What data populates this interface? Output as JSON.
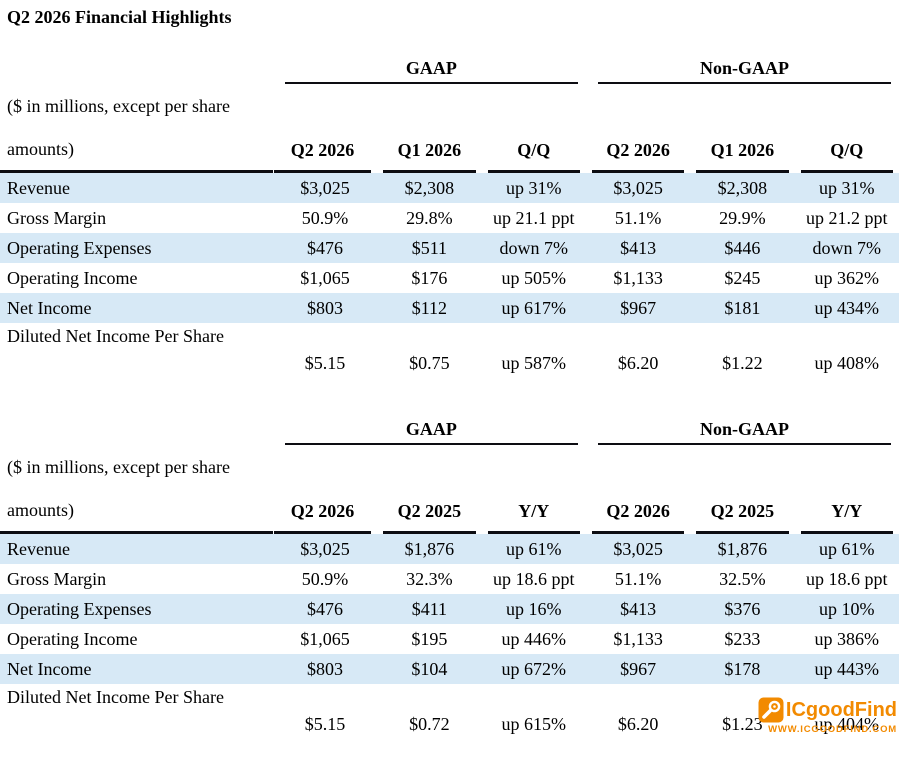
{
  "page": {
    "title": "Q2 2026 Financial Highlights"
  },
  "colors": {
    "row_stripe": "#d7e9f6",
    "border": "#0d0d12",
    "watermark_accent": "#f28a00"
  },
  "tables": [
    {
      "group_headers": [
        "GAAP",
        "Non-GAAP"
      ],
      "units_note": [
        "($ in millions, except per share",
        "amounts)"
      ],
      "columns": [
        "Q2 2026",
        "Q1 2026",
        "Q/Q",
        "Q2 2026",
        "Q1 2026",
        "Q/Q"
      ],
      "rows": [
        {
          "label": "Revenue",
          "values": [
            "$3,025",
            "$2,308",
            "up 31%",
            "$3,025",
            "$2,308",
            "up 31%"
          ]
        },
        {
          "label": "Gross Margin",
          "values": [
            "50.9%",
            "29.8%",
            "up 21.1 ppt",
            "51.1%",
            "29.9%",
            "up 21.2 ppt"
          ]
        },
        {
          "label": "Operating Expenses",
          "values": [
            "$476",
            "$511",
            "down 7%",
            "$413",
            "$446",
            "down 7%"
          ]
        },
        {
          "label": "Operating Income",
          "values": [
            "$1,065",
            "$176",
            "up 505%",
            "$1,133",
            "$245",
            "up 362%"
          ]
        },
        {
          "label": "Net Income",
          "values": [
            "$803",
            "$112",
            "up 617%",
            "$967",
            "$181",
            "up 434%"
          ]
        },
        {
          "label": "Diluted Net Income Per Share",
          "values": [
            "$5.15",
            "$0.75",
            "up 587%",
            "$6.20",
            "$1.22",
            "up 408%"
          ],
          "tall": true
        }
      ]
    },
    {
      "group_headers": [
        "GAAP",
        "Non-GAAP"
      ],
      "units_note": [
        "($ in millions, except per share",
        "amounts)"
      ],
      "columns": [
        "Q2 2026",
        "Q2 2025",
        "Y/Y",
        "Q2 2026",
        "Q2 2025",
        "Y/Y"
      ],
      "rows": [
        {
          "label": "Revenue",
          "values": [
            "$3,025",
            "$1,876",
            "up 61%",
            "$3,025",
            "$1,876",
            "up 61%"
          ]
        },
        {
          "label": "Gross Margin",
          "values": [
            "50.9%",
            "32.3%",
            "up 18.6 ppt",
            "51.1%",
            "32.5%",
            "up 18.6 ppt"
          ]
        },
        {
          "label": "Operating Expenses",
          "values": [
            "$476",
            "$411",
            "up 16%",
            "$413",
            "$376",
            "up 10%"
          ]
        },
        {
          "label": "Operating Income",
          "values": [
            "$1,065",
            "$195",
            "up 446%",
            "$1,133",
            "$233",
            "up 386%"
          ]
        },
        {
          "label": "Net Income",
          "values": [
            "$803",
            "$104",
            "up 672%",
            "$967",
            "$178",
            "up 443%"
          ]
        },
        {
          "label": "Diluted Net Income Per Share",
          "values": [
            "$5.15",
            "$0.72",
            "up 615%",
            "$6.20",
            "$1.23",
            "up 404%"
          ],
          "tall": true
        }
      ]
    }
  ],
  "watermark": {
    "brand": "ICgoodFind",
    "url": "WWW.ICGOODFIND.COM"
  }
}
